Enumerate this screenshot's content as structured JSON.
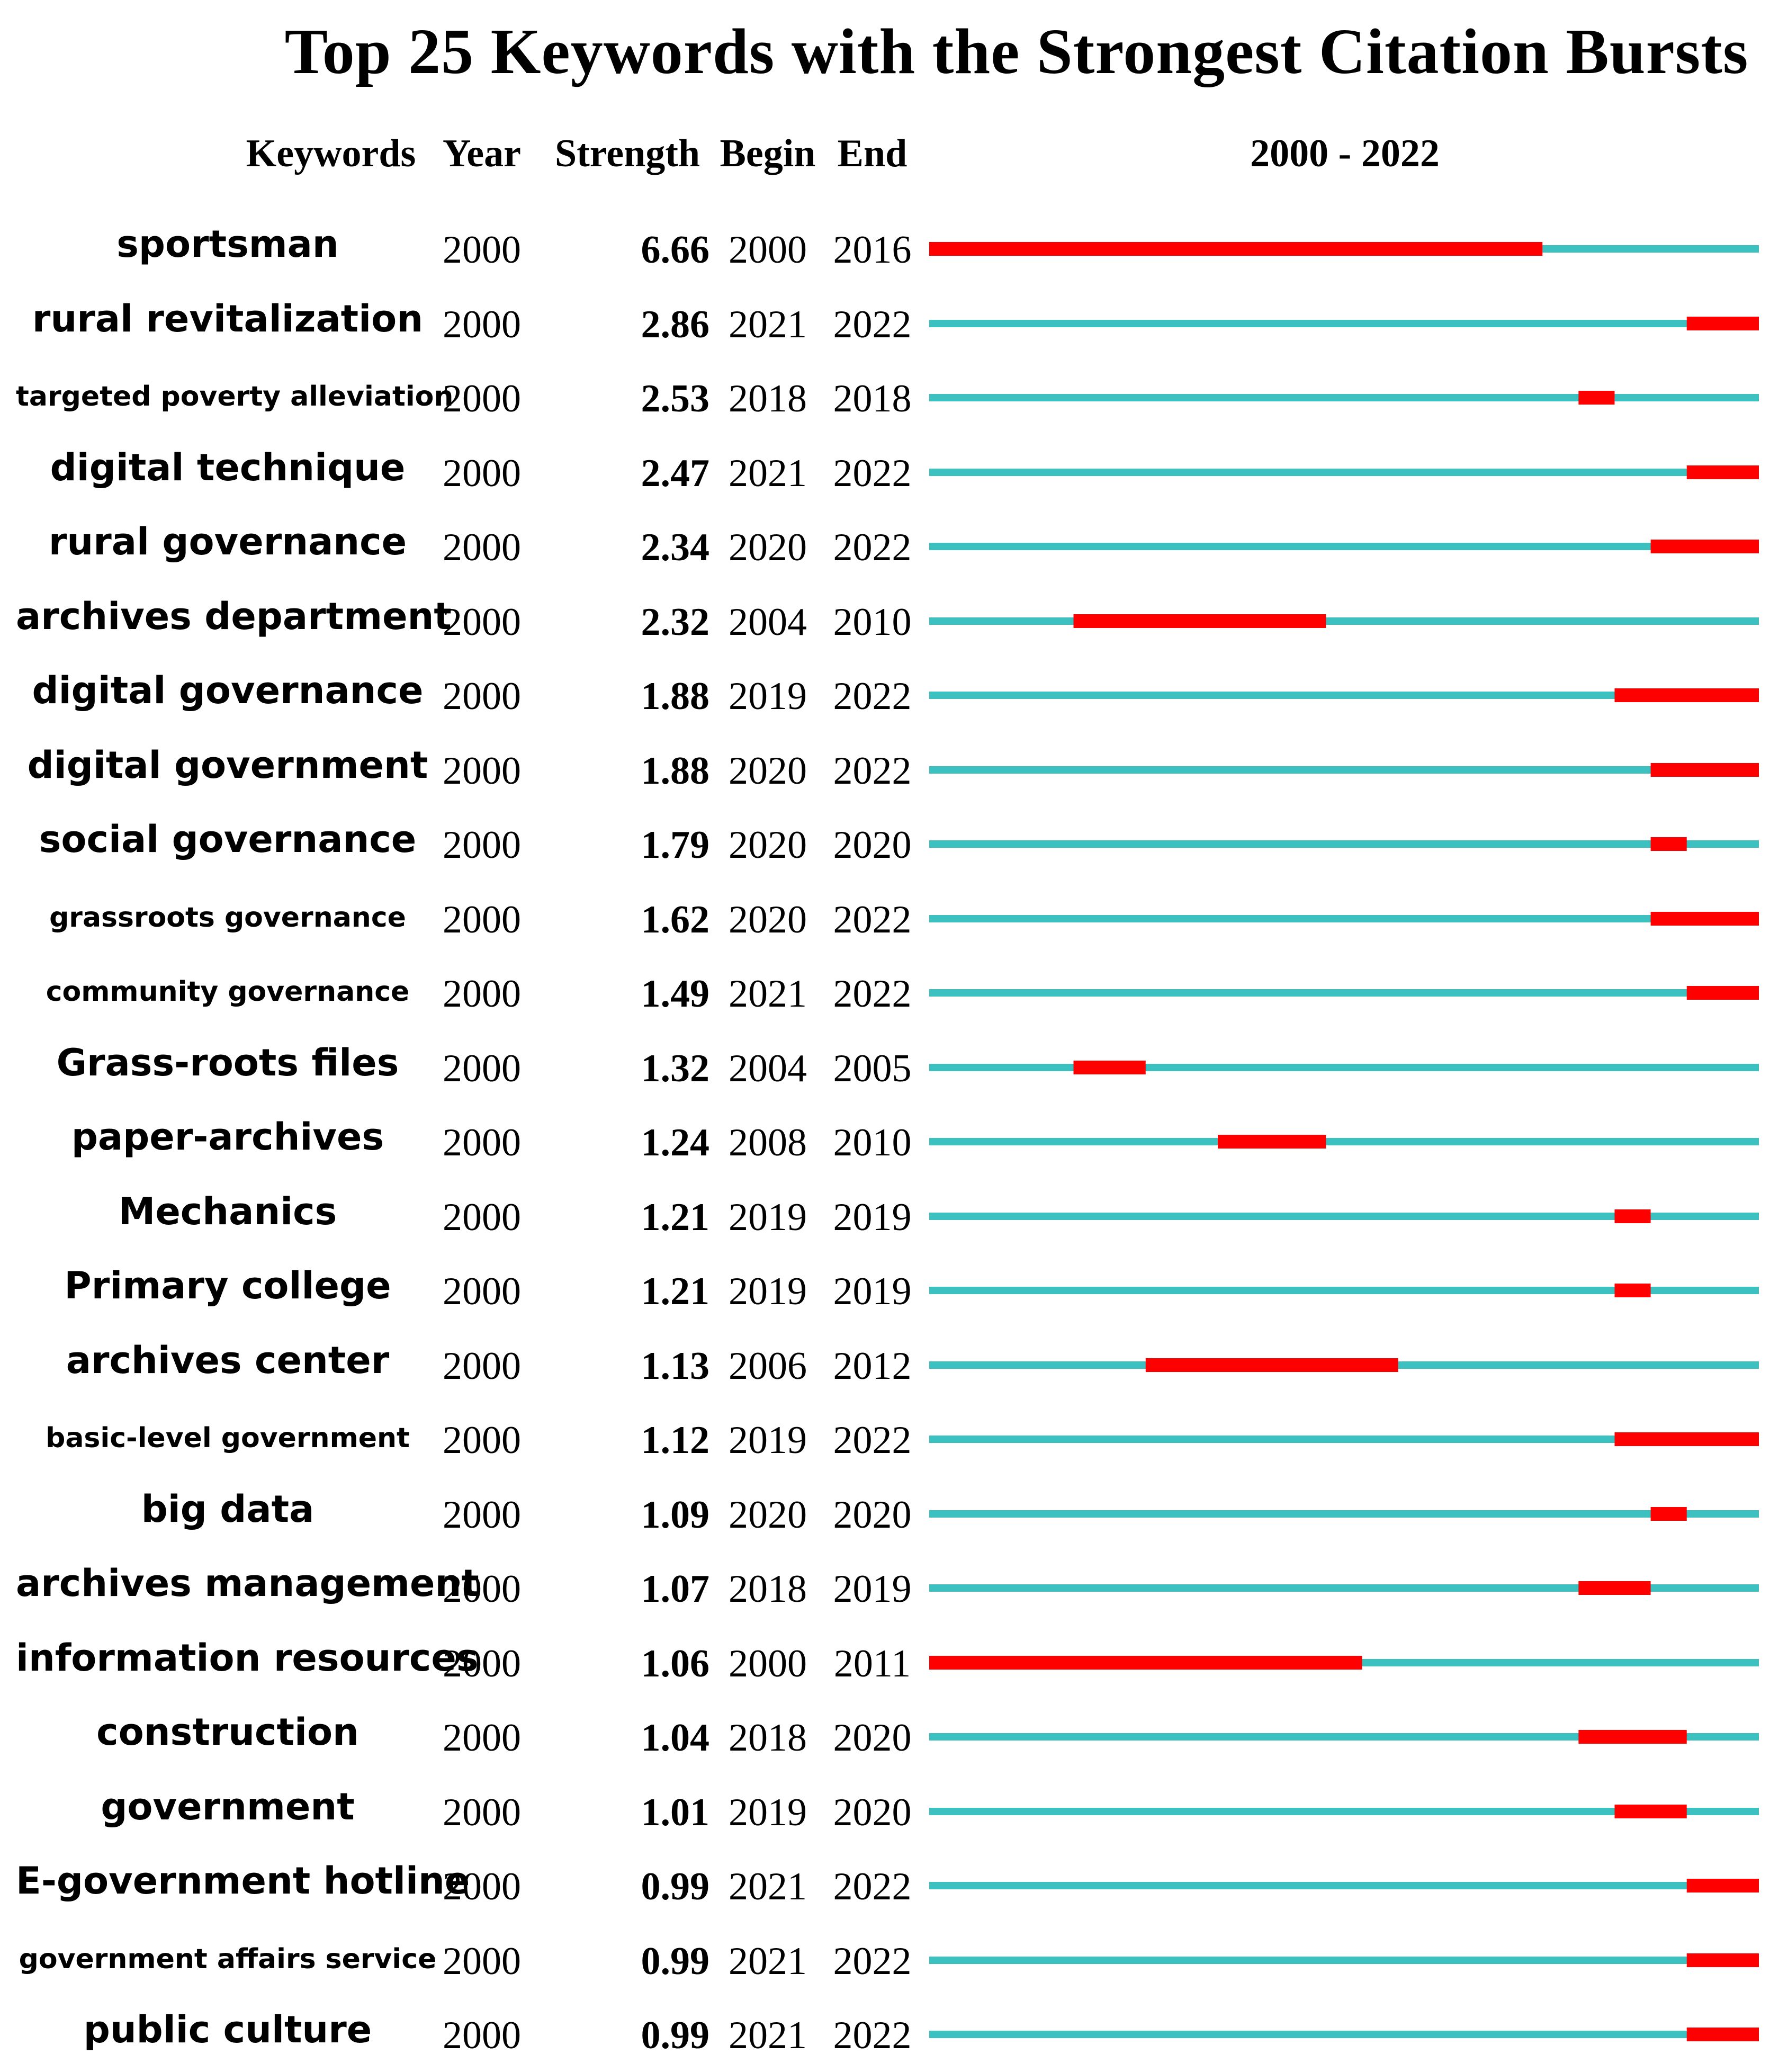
{
  "chart_data": {
    "type": "table",
    "title": "Top 25 Keywords with the Strongest Citation Bursts",
    "columns": {
      "keyword": "Keywords",
      "year": "Year",
      "strength": "Strength",
      "begin": "Begin",
      "end": "End",
      "range": "2000 - 2022"
    },
    "range_start": 2000,
    "range_end": 2022,
    "colors": {
      "burst": "#ff0000",
      "baseline": "#3cc0c0"
    },
    "rows": [
      {
        "keyword": "sportsman",
        "year": "2000",
        "strength": "6.66",
        "begin": "2000",
        "end": "2016"
      },
      {
        "keyword": "rural revitalization",
        "year": "2000",
        "strength": "2.86",
        "begin": "2021",
        "end": "2022"
      },
      {
        "keyword": "targeted poverty alleviation",
        "year": "2000",
        "strength": "2.53",
        "begin": "2018",
        "end": "2018",
        "small": true
      },
      {
        "keyword": "digital technique",
        "year": "2000",
        "strength": "2.47",
        "begin": "2021",
        "end": "2022"
      },
      {
        "keyword": "rural governance",
        "year": "2000",
        "strength": "2.34",
        "begin": "2020",
        "end": "2022"
      },
      {
        "keyword": "archives department",
        "year": "2000",
        "strength": "2.32",
        "begin": "2004",
        "end": "2010"
      },
      {
        "keyword": "digital governance",
        "year": "2000",
        "strength": "1.88",
        "begin": "2019",
        "end": "2022"
      },
      {
        "keyword": "digital government",
        "year": "2000",
        "strength": "1.88",
        "begin": "2020",
        "end": "2022"
      },
      {
        "keyword": "social governance",
        "year": "2000",
        "strength": "1.79",
        "begin": "2020",
        "end": "2020"
      },
      {
        "keyword": "grassroots governance",
        "year": "2000",
        "strength": "1.62",
        "begin": "2020",
        "end": "2022",
        "small": true
      },
      {
        "keyword": "community governance",
        "year": "2000",
        "strength": "1.49",
        "begin": "2021",
        "end": "2022",
        "small": true
      },
      {
        "keyword": "Grass-roots files",
        "year": "2000",
        "strength": "1.32",
        "begin": "2004",
        "end": "2005"
      },
      {
        "keyword": "paper-archives",
        "year": "2000",
        "strength": "1.24",
        "begin": "2008",
        "end": "2010"
      },
      {
        "keyword": "Mechanics",
        "year": "2000",
        "strength": "1.21",
        "begin": "2019",
        "end": "2019"
      },
      {
        "keyword": "Primary college",
        "year": "2000",
        "strength": "1.21",
        "begin": "2019",
        "end": "2019"
      },
      {
        "keyword": "archives center",
        "year": "2000",
        "strength": "1.13",
        "begin": "2006",
        "end": "2012"
      },
      {
        "keyword": "basic-level government",
        "year": "2000",
        "strength": "1.12",
        "begin": "2019",
        "end": "2022",
        "small": true
      },
      {
        "keyword": "big data",
        "year": "2000",
        "strength": "1.09",
        "begin": "2020",
        "end": "2020"
      },
      {
        "keyword": "archives management",
        "year": "2000",
        "strength": "1.07",
        "begin": "2018",
        "end": "2019"
      },
      {
        "keyword": "information resources",
        "year": "2000",
        "strength": "1.06",
        "begin": "2000",
        "end": "2011"
      },
      {
        "keyword": "construction",
        "year": "2000",
        "strength": "1.04",
        "begin": "2018",
        "end": "2020"
      },
      {
        "keyword": "government",
        "year": "2000",
        "strength": "1.01",
        "begin": "2019",
        "end": "2020"
      },
      {
        "keyword": "E-government hotline",
        "year": "2000",
        "strength": "0.99",
        "begin": "2021",
        "end": "2022"
      },
      {
        "keyword": "government affairs service",
        "year": "2000",
        "strength": "0.99",
        "begin": "2021",
        "end": "2022",
        "small": true
      },
      {
        "keyword": "public culture",
        "year": "2000",
        "strength": "0.99",
        "begin": "2021",
        "end": "2022"
      }
    ]
  }
}
